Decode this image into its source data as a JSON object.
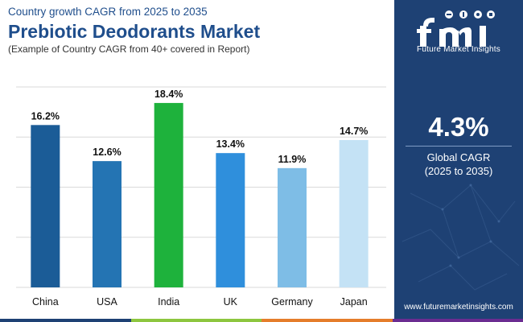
{
  "header": {
    "subtitle": "Country growth CAGR from 2025 to 2035",
    "title": "Prebiotic Deodorants Market",
    "note": "(Example of Country CAGR from 40+ covered in Report)"
  },
  "chart_data": {
    "type": "bar",
    "categories": [
      "China",
      "USA",
      "India",
      "UK",
      "Germany",
      "Japan"
    ],
    "values": [
      16.2,
      12.6,
      18.4,
      13.4,
      11.9,
      14.7
    ],
    "value_labels": [
      "16.2%",
      "12.6%",
      "18.4%",
      "13.4%",
      "11.9%",
      "14.7%"
    ],
    "colors": [
      "#1b5c97",
      "#2474b3",
      "#1eb23c",
      "#2f8fdc",
      "#7ebde6",
      "#c4e2f5"
    ],
    "ylim": [
      0,
      20
    ],
    "grid": true,
    "xlabel": "",
    "ylabel": ""
  },
  "sidebar": {
    "logo_text": "Future Market Insights",
    "cagr_value": "4.3%",
    "cagr_label": "Global CAGR",
    "cagr_period": "(2025 to 2035)",
    "website": "www.futuremarketinsights.com"
  },
  "bottom_bar_colors": [
    "#1e4174",
    "#8dc63f",
    "#e57d2b",
    "#6b2c91"
  ]
}
